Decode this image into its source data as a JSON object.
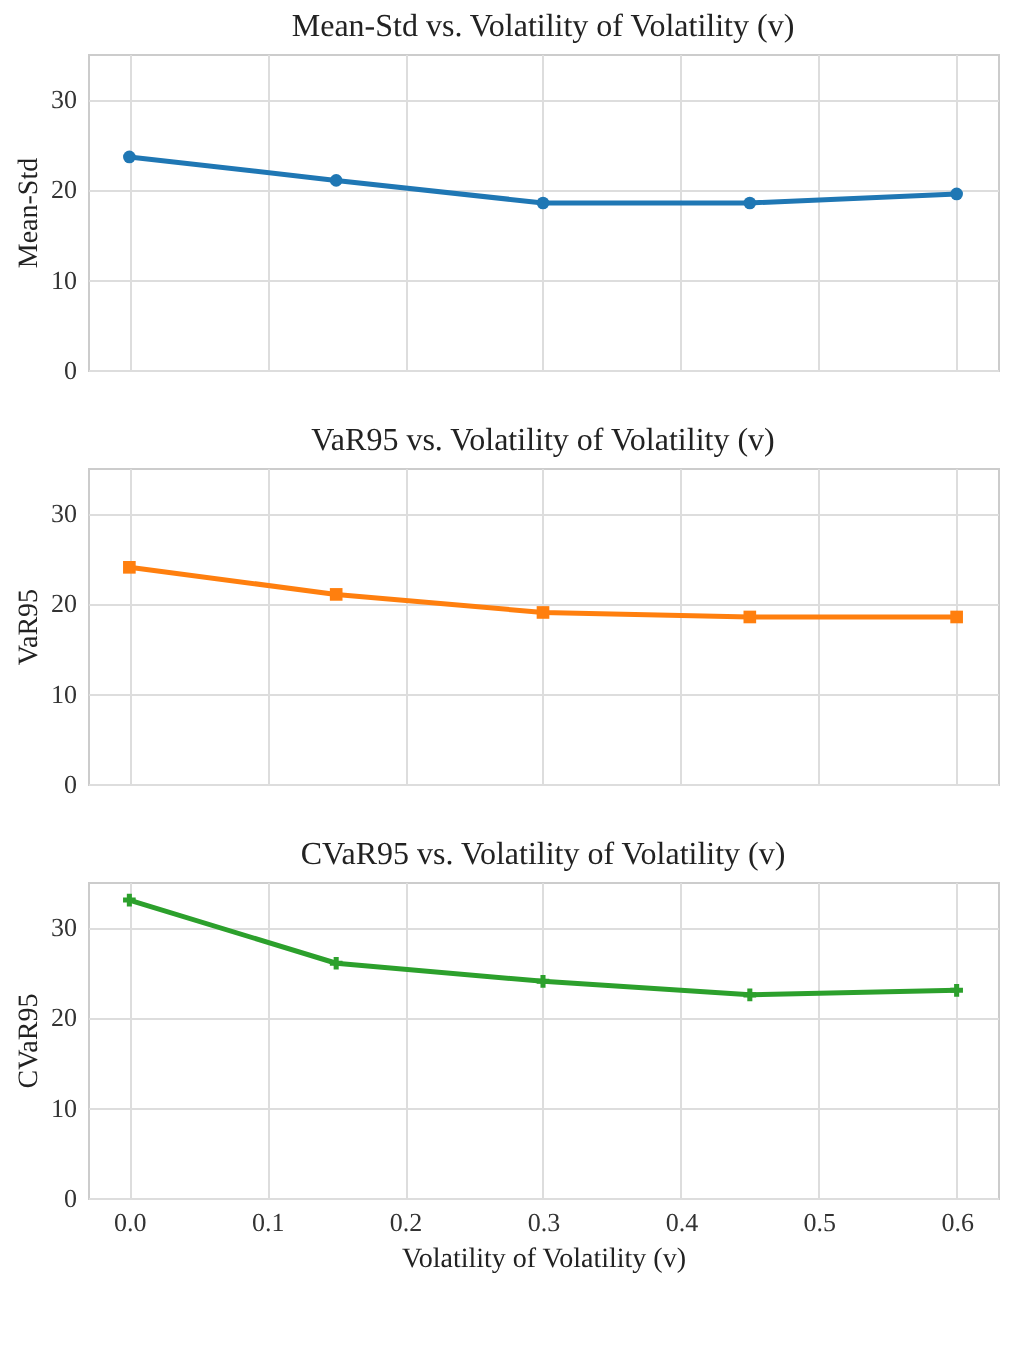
{
  "chart_data": [
    {
      "type": "line",
      "title": "Mean-Std vs. Volatility of Volatility (v)",
      "ylabel": "Mean-Std",
      "x": [
        0.0,
        0.15,
        0.3,
        0.45,
        0.6
      ],
      "series": [
        {
          "color": "#1f77b4",
          "values": [
            23.6,
            21,
            18.5,
            18.5,
            19.5
          ]
        }
      ],
      "xlim": [
        -0.03,
        0.63
      ],
      "xticks": [
        0,
        0.1,
        0.2,
        0.3,
        0.4,
        0.5,
        0.6
      ],
      "ylim": [
        0,
        35
      ],
      "yticks": [
        0,
        10,
        20,
        30
      ],
      "grid": true,
      "marker": "circle",
      "tick_labels": "y"
    },
    {
      "type": "line",
      "title": "VaR95 vs. Volatility of Volatility (v)",
      "ylabel": "VaR95",
      "x": [
        0.0,
        0.15,
        0.3,
        0.45,
        0.6
      ],
      "series": [
        {
          "color": "#ff7f0e",
          "values": [
            24,
            21,
            19,
            18.5,
            18.5
          ]
        }
      ],
      "xlim": [
        -0.03,
        0.63
      ],
      "xticks": [
        0,
        0.1,
        0.2,
        0.3,
        0.4,
        0.5,
        0.6
      ],
      "ylim": [
        0,
        35
      ],
      "yticks": [
        0,
        10,
        20,
        30
      ],
      "grid": true,
      "marker": "square",
      "tick_labels": "y"
    },
    {
      "type": "line",
      "title": "CVaR95 vs. Volatility of Volatility (v)",
      "xlabel": "Volatility of Volatility (v)",
      "ylabel": "CVaR95",
      "x": [
        0.0,
        0.15,
        0.3,
        0.45,
        0.6
      ],
      "series": [
        {
          "color": "#2ca02c",
          "values": [
            33,
            26,
            24,
            22.5,
            23
          ]
        }
      ],
      "xlim": [
        -0.03,
        0.63
      ],
      "xticks": [
        {
          "value": 0,
          "label": "0.0"
        },
        0.1,
        0.2,
        0.3,
        0.4,
        0.5,
        0.6
      ],
      "ylim": [
        0,
        35
      ],
      "yticks": [
        0,
        10,
        20,
        30
      ],
      "grid": true,
      "marker": "cross"
    }
  ]
}
